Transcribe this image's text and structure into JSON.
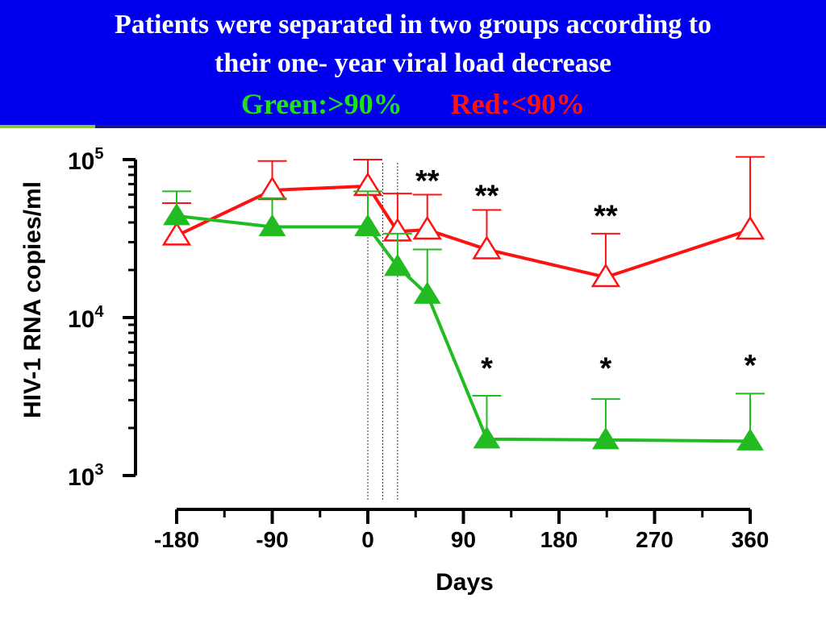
{
  "slide": {
    "title_line_1": "Patients were separated in two groups according to",
    "title_line_2": "their one- year viral load decrease",
    "legend_green": "Green:>90%",
    "legend_red": "Red:<90%",
    "header_color": "#0000ee"
  },
  "chart_data": {
    "type": "line",
    "xlabel": "Days",
    "ylabel": "HIV-1 RNA copies/ml",
    "yscale": "log",
    "ylim": [
      1000,
      100000
    ],
    "xlim": [
      -180,
      360
    ],
    "x_ticks": [
      -180,
      -90,
      0,
      90,
      180,
      270,
      360
    ],
    "y_ticks": [
      {
        "value": 100000,
        "base": "10",
        "exp": "5"
      },
      {
        "value": 10000,
        "base": "10",
        "exp": "4"
      },
      {
        "value": 1000,
        "base": "10",
        "exp": "3"
      }
    ],
    "reference_lines_x": [
      0,
      14,
      28
    ],
    "series": [
      {
        "color": "#ff1111",
        "marker": "open-triangle",
        "points": [
          {
            "x": -180,
            "y": 33000,
            "err": 53000
          },
          {
            "x": -90,
            "y": 64000,
            "err": 98000
          },
          {
            "x": 0,
            "y": 68000,
            "err": 100000
          },
          {
            "x": 28,
            "y": 35000,
            "err": 61000
          },
          {
            "x": 56,
            "y": 36000,
            "err": 60000
          },
          {
            "x": 112,
            "y": 27000,
            "err": 48000
          },
          {
            "x": 224,
            "y": 18000,
            "err": 34000
          },
          {
            "x": 360,
            "y": 36000,
            "err": 104000
          }
        ]
      },
      {
        "color": "#22bb22",
        "marker": "filled-triangle",
        "points": [
          {
            "x": -180,
            "y": 44000,
            "err": 63000
          },
          {
            "x": -90,
            "y": 37500,
            "err": 57000
          },
          {
            "x": 0,
            "y": 37500,
            "err": 63000
          },
          {
            "x": 28,
            "y": 21000,
            "err": 34000
          },
          {
            "x": 56,
            "y": 14000,
            "err": 27000
          },
          {
            "x": 112,
            "y": 1700,
            "err": 3200
          },
          {
            "x": 224,
            "y": 1680,
            "err": 3050
          },
          {
            "x": 360,
            "y": 1650,
            "err": 3300
          }
        ]
      }
    ],
    "annotations": [
      {
        "x": 56,
        "y": 78000,
        "text": "**"
      },
      {
        "x": 112,
        "y": 63000,
        "text": "**"
      },
      {
        "x": 224,
        "y": 47000,
        "text": "**"
      },
      {
        "x": 112,
        "y": 5100,
        "text": "*"
      },
      {
        "x": 224,
        "y": 5100,
        "text": "*"
      },
      {
        "x": 360,
        "y": 5300,
        "text": "*"
      }
    ]
  }
}
